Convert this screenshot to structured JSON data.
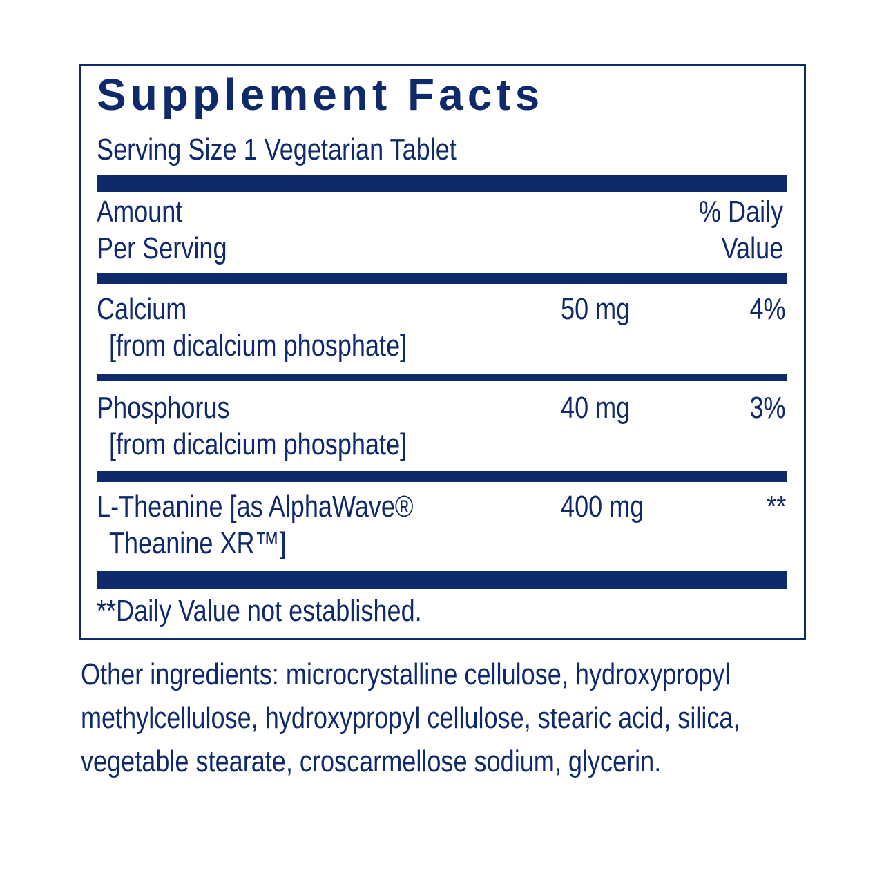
{
  "title": "Supplement Facts",
  "serving": "Serving Size 1 Vegetarian Tablet",
  "header": {
    "amount1": "Amount",
    "amount2": "Per Serving",
    "dv1": "% Daily",
    "dv2": "Value"
  },
  "rows": [
    {
      "name": "Calcium",
      "source": "[from dicalcium phosphate]",
      "amount": "50 mg",
      "dv": "4%"
    },
    {
      "name": "Phosphorus",
      "source": "[from dicalcium phosphate]",
      "amount": "40 mg",
      "dv": "3%"
    },
    {
      "name": "L-Theanine [as AlphaWave®",
      "source": "Theanine XR™]",
      "amount": "400 mg",
      "dv": "**"
    }
  ],
  "footnote": "**Daily Value not established.",
  "other_ingredients": "Other ingredients: microcrystalline cellulose, hydroxypropyl methylcellulose, hydroxypropyl cellulose, stearic acid, silica, vegetable stearate, croscarmellose sodium, glycerin.",
  "colors": {
    "brand": "#0f2a6b"
  }
}
